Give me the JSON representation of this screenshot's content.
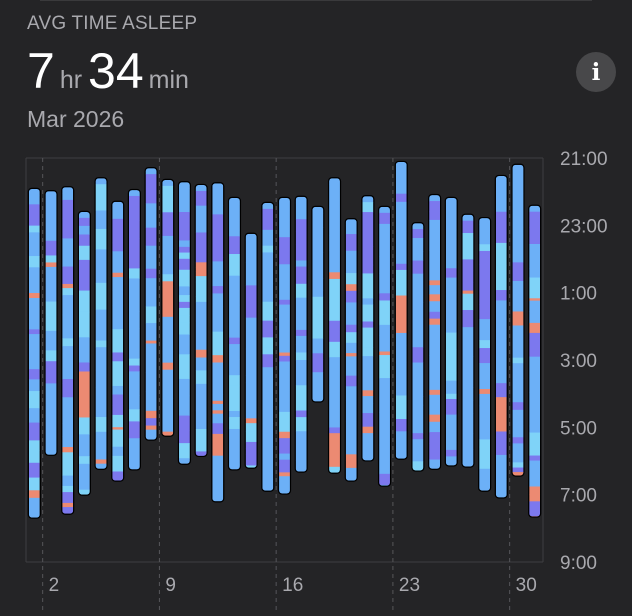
{
  "header": {
    "metric_label": "AVG TIME ASLEEP",
    "hours": "7",
    "hours_unit": "hr",
    "minutes": "34",
    "minutes_unit": "min",
    "period": "Mar 2026",
    "info_icon": "info-icon"
  },
  "chart_data": {
    "type": "bar",
    "subtype": "range-stacked (sleep stages per night)",
    "y_axis": {
      "ticks": [
        "21:00",
        "23:00",
        "1:00",
        "3:00",
        "5:00",
        "7:00",
        "9:00"
      ],
      "range": [
        "21:00",
        "9:00"
      ],
      "position": "right"
    },
    "x_axis": {
      "tick_labels": [
        "2",
        "9",
        "16",
        "23",
        "30"
      ],
      "tick_days": [
        2,
        9,
        16,
        23,
        30
      ],
      "days": 31
    },
    "grid": {
      "horizontal": "top and bottom borders",
      "vertical": "dashed at labeled days"
    },
    "stage_colors": {
      "awake": "#ec8a72",
      "rem": "#7fd3f8",
      "core": "#6cb0f7",
      "deep": "#7c78ee"
    },
    "nights": [
      {
        "day": 1,
        "start": "21:55",
        "end": "07:41"
      },
      {
        "day": 2,
        "start": "21:59",
        "end": "05:49"
      },
      {
        "day": 3,
        "start": "21:52",
        "end": "07:34"
      },
      {
        "day": 4,
        "start": "22:36",
        "end": "07:00"
      },
      {
        "day": 5,
        "start": "21:36",
        "end": "06:14"
      },
      {
        "day": 6,
        "start": "22:18",
        "end": "06:35"
      },
      {
        "day": 7,
        "start": "21:57",
        "end": "06:15"
      },
      {
        "day": 8,
        "start": "21:18",
        "end": "05:22"
      },
      {
        "day": 9,
        "start": "21:39",
        "end": "05:15"
      },
      {
        "day": 10,
        "start": "21:43",
        "end": "06:05"
      },
      {
        "day": 11,
        "start": "21:48",
        "end": "05:51"
      },
      {
        "day": 12,
        "start": "21:45",
        "end": "07:12"
      },
      {
        "day": 13,
        "start": "22:11",
        "end": "06:15"
      },
      {
        "day": 14,
        "start": "23:15",
        "end": "06:12"
      },
      {
        "day": 15,
        "start": "22:20",
        "end": "06:53"
      },
      {
        "day": 16,
        "start": "22:11",
        "end": "06:58"
      },
      {
        "day": 17,
        "start": "22:09",
        "end": "06:19"
      },
      {
        "day": 18,
        "start": "22:27",
        "end": "04:14"
      },
      {
        "day": 19,
        "start": "21:36",
        "end": "06:21"
      },
      {
        "day": 20,
        "start": "22:49",
        "end": "06:35"
      },
      {
        "day": 21,
        "start": "22:08",
        "end": "05:59"
      },
      {
        "day": 22,
        "start": "22:27",
        "end": "06:44"
      },
      {
        "day": 23,
        "start": "21:07",
        "end": "05:56"
      },
      {
        "day": 24,
        "start": "22:56",
        "end": "06:17"
      },
      {
        "day": 25,
        "start": "22:06",
        "end": "06:14"
      },
      {
        "day": 26,
        "start": "22:11",
        "end": "06:08"
      },
      {
        "day": 27,
        "start": "22:41",
        "end": "06:10"
      },
      {
        "day": 28,
        "start": "22:47",
        "end": "06:53"
      },
      {
        "day": 29,
        "start": "21:32",
        "end": "07:05"
      },
      {
        "day": 30,
        "start": "21:12",
        "end": "06:26"
      },
      {
        "day": 31,
        "start": "22:25",
        "end": "07:39"
      }
    ]
  }
}
